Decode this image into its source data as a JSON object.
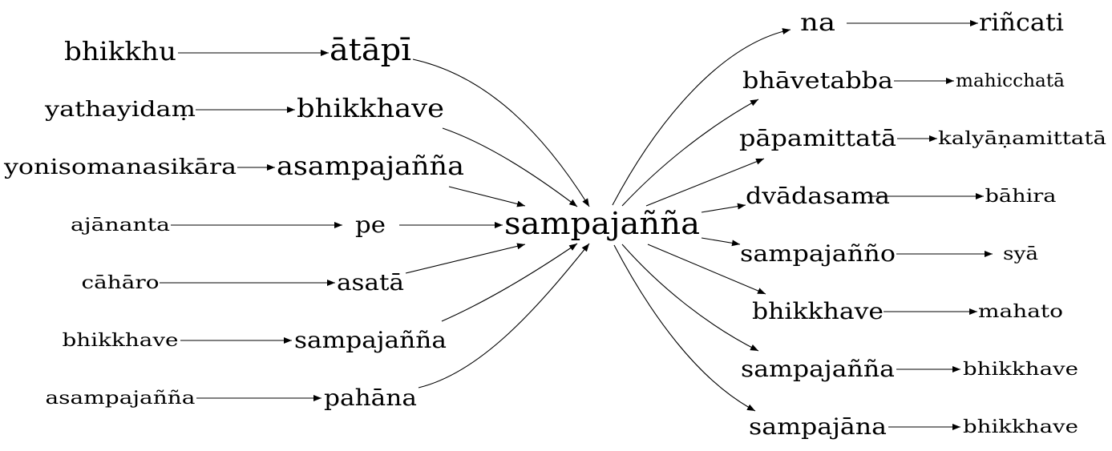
{
  "center": {
    "label": "sampajañña"
  },
  "left_chains": [
    {
      "source": "bhikkhu",
      "target": "ātāpī"
    },
    {
      "source": "yathayidaṃ",
      "target": "bhikkhave"
    },
    {
      "source": "yonisomanasikāra",
      "target": "asampajañña"
    },
    {
      "source": "ajānanta",
      "target": "pe"
    },
    {
      "source": "cāhāro",
      "target": "asatā"
    },
    {
      "source": "bhikkhave",
      "target": "sampajañña"
    },
    {
      "source": "asampajañña",
      "target": "pahāna"
    }
  ],
  "right_chains": [
    {
      "source": "na",
      "target": "riñcati"
    },
    {
      "source": "bhāvetabba",
      "target": "mahicchatā"
    },
    {
      "source": "pāpamittatā",
      "target": "kalyāṇamittatā"
    },
    {
      "source": "dvādasama",
      "target": "bāhira"
    },
    {
      "source": "sampajañño",
      "target": "syā"
    },
    {
      "source": "bhikkhave",
      "target": "mahato"
    },
    {
      "source": "sampajañña",
      "target": "bhikkhave"
    },
    {
      "source": "sampajāna",
      "target": "bhikkhave"
    }
  ]
}
